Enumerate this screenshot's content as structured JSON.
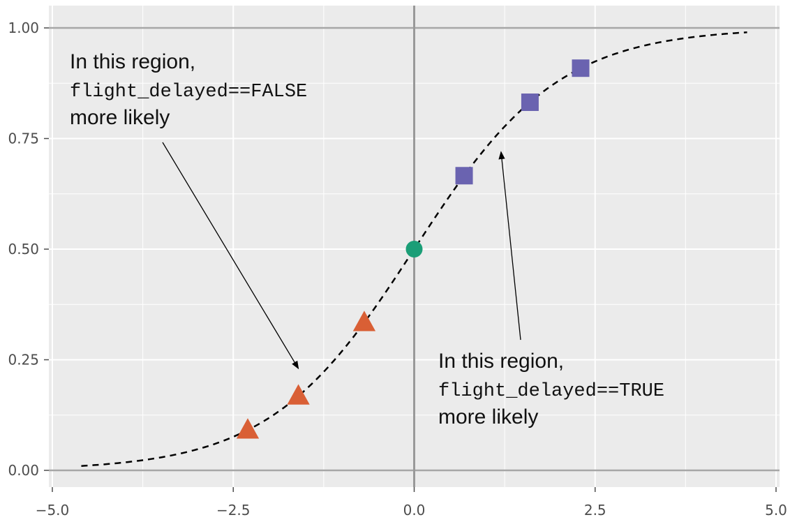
{
  "chart_data": {
    "type": "scatter",
    "title": "",
    "xlabel": "",
    "ylabel": "",
    "xlim": [
      -5.0,
      5.0
    ],
    "ylim": [
      0.0,
      1.0
    ],
    "grid": true,
    "x_ticks": [
      "−5.0",
      "−2.5",
      "0.0",
      "2.5",
      "5.0"
    ],
    "y_ticks": [
      "0.00",
      "0.25",
      "0.50",
      "0.75",
      "1.00"
    ],
    "curve": {
      "style": "dashed",
      "function": "logistic",
      "x_range": [
        -4.6,
        4.6
      ],
      "color": "#000000"
    },
    "series": [
      {
        "marker": "triangle",
        "color": "#d95f35",
        "points": [
          {
            "x": -2.3,
            "y": 0.091
          },
          {
            "x": -1.6,
            "y": 0.168
          },
          {
            "x": -0.69,
            "y": 0.334
          }
        ]
      },
      {
        "marker": "circle",
        "color": "#1b9e77",
        "points": [
          {
            "x": 0.0,
            "y": 0.5
          }
        ]
      },
      {
        "marker": "square",
        "color": "#6a63b0",
        "points": [
          {
            "x": 0.69,
            "y": 0.666
          },
          {
            "x": 1.6,
            "y": 0.832
          },
          {
            "x": 2.3,
            "y": 0.909
          }
        ]
      }
    ],
    "annotations": [
      {
        "lines": [
          "In this region,",
          "flight_delayed==FALSE",
          "more likely"
        ],
        "arrow_to": {
          "x": -1.6,
          "y": 0.23
        }
      },
      {
        "lines": [
          "In this region,",
          "flight_delayed==TRUE",
          "more likely"
        ],
        "arrow_to": {
          "x": 1.2,
          "y": 0.72
        }
      }
    ],
    "reference_lines": [
      {
        "axis": "x",
        "value": 0.0
      }
    ]
  }
}
